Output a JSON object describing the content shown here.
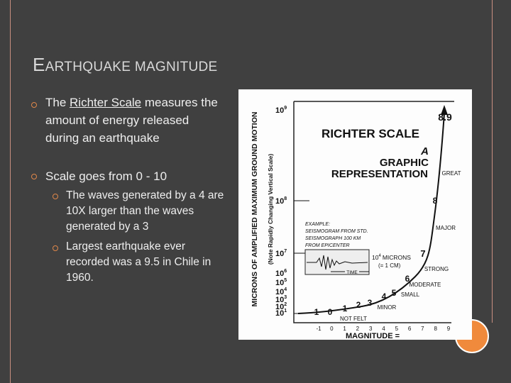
{
  "slide": {
    "title": "EARTHQUAKE MAGNITUDE",
    "bullets": [
      {
        "before": "The",
        "link": "Richter Scale",
        "after": "measures the amount of energy released during an earthquake"
      },
      {
        "text": "Scale goes from 0 - 10"
      }
    ],
    "sub_bullets": [
      "The waves generated by a 4 are 10X larger than the waves generated by a 3",
      "Largest earthquake ever recorded was a 9.5 in Chile in 1960."
    ]
  },
  "figure": {
    "title": "RICHTER SCALE",
    "subtitle_lines": [
      "A",
      "GRAPHIC",
      "REPRESENTATION"
    ],
    "y_axis_label": "MICRONS OF AMPLIFIED MAXIMUM GROUND MOTION",
    "y_axis_note": "(Note Rapidly Changing Vertical Scale)",
    "x_axis_label": "MAGNITUDE =",
    "x_ticks": [
      "-1",
      "0",
      "1",
      "2",
      "3",
      "4",
      "5",
      "6",
      "7",
      "8",
      "9"
    ],
    "y_labels": [
      {
        "base": "10",
        "exp": "9"
      },
      {
        "base": "10",
        "exp": "8"
      },
      {
        "base": "10",
        "exp": "7"
      },
      {
        "base": "10",
        "exp": "6"
      },
      {
        "base": "10",
        "exp": "5"
      },
      {
        "base": "10",
        "exp": "4"
      },
      {
        "base": "10",
        "exp": "3"
      },
      {
        "base": "10",
        "exp": "2"
      },
      {
        "base": "10",
        "exp": "1"
      }
    ],
    "curve_labels": [
      "8.9",
      "GREAT",
      "8",
      "MAJOR",
      "7",
      "STRONG",
      "6",
      "MODERATE",
      "5",
      "SMALL",
      "4",
      "3",
      "MINOR",
      "2",
      "1",
      "0",
      "-1",
      "NOT FELT"
    ],
    "example_lines": [
      "EXAMPLE:",
      "SEISMOGRAM FROM STD.",
      "SEISMOGRAPH 100 KM",
      "FROM EPICENTER"
    ],
    "amplitude": {
      "base": "10",
      "exp": "4",
      "unit": "MICRONS",
      "note": "(= 1 CM)"
    },
    "time_label": "TIME"
  }
}
